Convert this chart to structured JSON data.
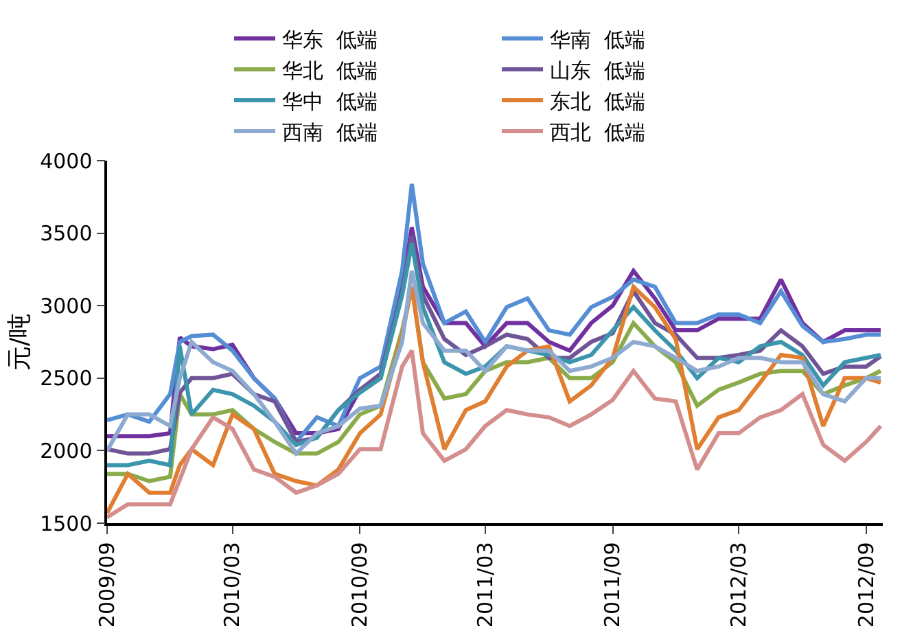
{
  "chart_data": {
    "type": "line",
    "ylabel": "元/吨",
    "legend": "top",
    "x": [
      "2009-09",
      "2009-10",
      "2009-11",
      "2009-12",
      "2009-12-15",
      "2010-01",
      "2010-02",
      "2010-03",
      "2010-04",
      "2010-05",
      "2010-06",
      "2010-07",
      "2010-08",
      "2010-09",
      "2010-10",
      "2010-11",
      "2010-11-15",
      "2010-12",
      "2011-01",
      "2011-02",
      "2011-03",
      "2011-04",
      "2011-05",
      "2011-06",
      "2011-07",
      "2011-08",
      "2011-09",
      "2011-10",
      "2011-11",
      "2011-12",
      "2012-01",
      "2012-02",
      "2012-03",
      "2012-04",
      "2012-05",
      "2012-06",
      "2012-07",
      "2012-08",
      "2012-09",
      "2012-09-22"
    ],
    "xlim": [
      "2009-09",
      "2012-09-25"
    ],
    "xticks": [
      {
        "value": "2009-09",
        "label": "2009/09"
      },
      {
        "value": "2010-03",
        "label": "2010/03"
      },
      {
        "value": "2010-09",
        "label": "2010/09"
      },
      {
        "value": "2011-03",
        "label": "2011/03"
      },
      {
        "value": "2011-09",
        "label": "2011/09"
      },
      {
        "value": "2012-03",
        "label": "2012/03"
      },
      {
        "value": "2012-09",
        "label": "2012/09"
      }
    ],
    "ylim": [
      1500,
      4000
    ],
    "yticks": [
      1500,
      2000,
      2500,
      3000,
      3500,
      4000
    ],
    "series": [
      {
        "name": "华东  低端",
        "color": "#7030a0",
        "values": [
          2100,
          2100,
          2100,
          2120,
          2780,
          2720,
          2700,
          2730,
          2500,
          2360,
          2120,
          2120,
          2150,
          2420,
          2500,
          3130,
          3540,
          3130,
          2880,
          2880,
          2720,
          2880,
          2880,
          2750,
          2690,
          2880,
          3000,
          3240,
          3050,
          2830,
          2830,
          2910,
          2910,
          2910,
          3180,
          2880,
          2750,
          2830,
          2830,
          2830
        ]
      },
      {
        "name": "华南  低端",
        "color": "#558ed5",
        "values": [
          2210,
          2250,
          2200,
          2390,
          2750,
          2790,
          2800,
          2690,
          2500,
          2360,
          2060,
          2230,
          2170,
          2500,
          2580,
          3240,
          3840,
          3290,
          2880,
          2960,
          2750,
          2990,
          3050,
          2830,
          2800,
          2990,
          3060,
          3180,
          3130,
          2880,
          2880,
          2940,
          2940,
          2880,
          3100,
          2860,
          2750,
          2770,
          2800,
          2800
        ]
      },
      {
        "name": "华北  低端",
        "color": "#8aab4a",
        "values": [
          1840,
          1840,
          1790,
          1820,
          2390,
          2250,
          2250,
          2280,
          2150,
          2060,
          1980,
          1980,
          2060,
          2250,
          2310,
          2830,
          3130,
          2610,
          2360,
          2390,
          2550,
          2610,
          2610,
          2640,
          2500,
          2500,
          2610,
          2880,
          2720,
          2610,
          2310,
          2420,
          2470,
          2530,
          2550,
          2550,
          2390,
          2450,
          2500,
          2550
        ]
      },
      {
        "name": "山东  低端",
        "color": "#6f5597",
        "values": [
          2010,
          1980,
          1980,
          2010,
          2400,
          2500,
          2500,
          2530,
          2390,
          2340,
          2060,
          2090,
          2280,
          2420,
          2530,
          3100,
          3480,
          3070,
          2770,
          2660,
          2720,
          2800,
          2770,
          2640,
          2640,
          2750,
          2810,
          3100,
          2880,
          2800,
          2640,
          2640,
          2660,
          2690,
          2830,
          2720,
          2530,
          2580,
          2580,
          2650
        ]
      },
      {
        "name": "华中  低端",
        "color": "#3b95ad",
        "values": [
          1900,
          1900,
          1930,
          1900,
          2720,
          2250,
          2420,
          2390,
          2310,
          2200,
          2040,
          2090,
          2280,
          2400,
          2500,
          3070,
          3430,
          2990,
          2610,
          2530,
          2580,
          2720,
          2690,
          2660,
          2610,
          2660,
          2830,
          2990,
          2830,
          2690,
          2500,
          2640,
          2610,
          2720,
          2750,
          2660,
          2450,
          2610,
          2640,
          2660
        ]
      },
      {
        "name": "东北  低端",
        "color": "#e07f32",
        "values": [
          1570,
          1840,
          1710,
          1710,
          1900,
          2010,
          1900,
          2250,
          2150,
          1840,
          1790,
          1760,
          1870,
          2120,
          2250,
          2800,
          3130,
          2610,
          2010,
          2280,
          2340,
          2580,
          2690,
          2720,
          2340,
          2450,
          2640,
          3130,
          2990,
          2770,
          2010,
          2230,
          2280,
          2470,
          2660,
          2640,
          2170,
          2500,
          2500,
          2470
        ]
      },
      {
        "name": "西南  低端",
        "color": "#8faad0",
        "values": [
          2000,
          2250,
          2250,
          2170,
          2500,
          2750,
          2610,
          2550,
          2390,
          2200,
          1980,
          2120,
          2170,
          2290,
          2310,
          2750,
          3240,
          2880,
          2690,
          2690,
          2550,
          2720,
          2690,
          2690,
          2550,
          2580,
          2640,
          2750,
          2720,
          2640,
          2550,
          2580,
          2640,
          2640,
          2610,
          2610,
          2390,
          2340,
          2500,
          2500
        ]
      },
      {
        "name": "西北  低端",
        "color": "#d48e8e",
        "values": [
          1540,
          1630,
          1630,
          1630,
          1800,
          2010,
          2230,
          2150,
          1870,
          1820,
          1710,
          1760,
          1840,
          2010,
          2010,
          2580,
          2690,
          2120,
          1930,
          2010,
          2170,
          2280,
          2250,
          2230,
          2170,
          2250,
          2350,
          2550,
          2360,
          2340,
          1870,
          2120,
          2120,
          2230,
          2280,
          2390,
          2040,
          1930,
          2060,
          2170
        ]
      }
    ]
  }
}
